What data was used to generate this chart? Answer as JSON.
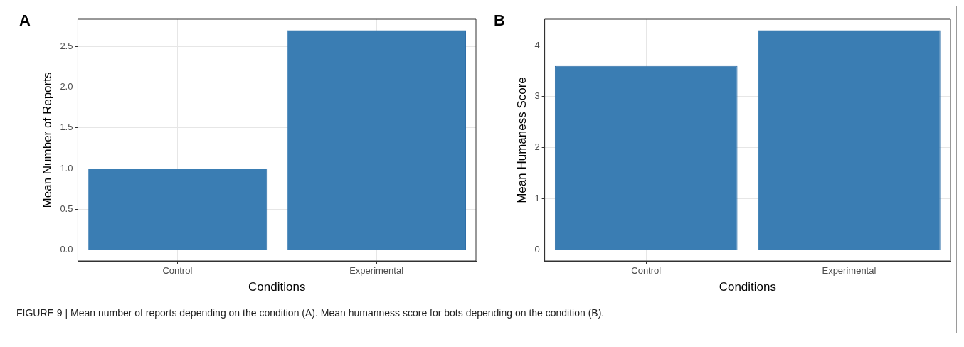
{
  "chart_data": [
    {
      "type": "bar",
      "title": "A",
      "categories": [
        "Control",
        "Experimental"
      ],
      "values": [
        1.0,
        2.7
      ],
      "color": "#3a7db3",
      "xlabel": "Conditions",
      "ylabel": "Mean Number of Reports",
      "ylim": [
        -0.135,
        2.835
      ],
      "yticks": [
        {
          "value": 0,
          "label": "0.0"
        },
        {
          "value": 0.5,
          "label": "0.5"
        },
        {
          "value": 1,
          "label": "1.0"
        },
        {
          "value": 1.5,
          "label": "1.5"
        },
        {
          "value": 2,
          "label": "2.0"
        },
        {
          "value": 2.5,
          "label": "2.5"
        }
      ],
      "grid": true,
      "legend": false
    },
    {
      "type": "bar",
      "title": "B",
      "categories": [
        "Control",
        "Experimental"
      ],
      "values": [
        3.6,
        4.3
      ],
      "color": "#3a7db3",
      "xlabel": "Conditions",
      "ylabel": "Mean Humaness Score",
      "ylim": [
        -0.215,
        4.515
      ],
      "yticks": [
        0,
        1,
        2,
        3,
        4
      ],
      "grid": true,
      "legend": false,
      "annotations": [
        "FIGURE 9 | Mean number of reports depending on the condition (A). Mean humanness score for bots depending on the condition (B)."
      ]
    }
  ]
}
